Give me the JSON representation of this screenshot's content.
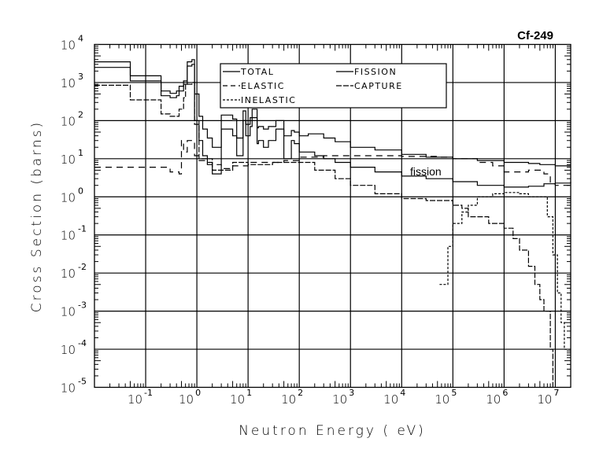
{
  "chart_data": {
    "type": "line",
    "title": "Cf-249",
    "xlabel": "Neutron Energy ( eV)",
    "ylabel": "Cross Section (barns)",
    "xscale": "log",
    "yscale": "log",
    "xlim": [
      0.01,
      20000000
    ],
    "ylim": [
      1e-05,
      10000
    ],
    "grid": true,
    "legend_position": "top-center",
    "x_tick_labels": [
      {
        "base": "10",
        "exp": "-1",
        "value": 0.1
      },
      {
        "base": "10",
        "exp": "0",
        "value": 1
      },
      {
        "base": "10",
        "exp": "1",
        "value": 10
      },
      {
        "base": "10",
        "exp": "2",
        "value": 100
      },
      {
        "base": "10",
        "exp": "3",
        "value": 1000
      },
      {
        "base": "10",
        "exp": "4",
        "value": 10000
      },
      {
        "base": "10",
        "exp": "5",
        "value": 100000
      },
      {
        "base": "10",
        "exp": "6",
        "value": 1000000
      },
      {
        "base": "10",
        "exp": "7",
        "value": 10000000
      }
    ],
    "y_tick_labels": [
      {
        "base": "10",
        "exp": "4",
        "value": 10000
      },
      {
        "base": "10",
        "exp": "3",
        "value": 1000
      },
      {
        "base": "10",
        "exp": "2",
        "value": 100
      },
      {
        "base": "10",
        "exp": "1",
        "value": 10
      },
      {
        "base": "10",
        "exp": "0",
        "value": 1
      },
      {
        "base": "10",
        "exp": "-1",
        "value": 0.1
      },
      {
        "base": "10",
        "exp": "-2",
        "value": 0.01
      },
      {
        "base": "10",
        "exp": "-3",
        "value": 0.001
      },
      {
        "base": "10",
        "exp": "-4",
        "value": 0.0001
      },
      {
        "base": "10",
        "exp": "-5",
        "value": 1e-05
      }
    ],
    "annotations": [
      {
        "text": "fission",
        "x": 30000,
        "y": 5
      }
    ],
    "series": [
      {
        "name": "TOTAL",
        "style": "solid",
        "x": [
          0.01,
          0.05,
          0.2,
          0.3,
          0.35,
          0.4,
          0.45,
          0.55,
          0.6,
          0.65,
          0.8,
          0.9,
          1.1,
          1.3,
          1.6,
          2,
          3,
          3.5,
          5,
          6,
          8,
          9,
          11,
          12,
          15,
          16,
          20,
          25,
          35,
          50,
          70,
          80,
          100,
          150,
          200,
          300,
          500,
          1000,
          3000,
          10000,
          30000,
          100000,
          300000,
          1000000,
          3000000,
          5000000,
          10000000,
          20000000
        ],
        "y": [
          3500,
          1500,
          600,
          520,
          520,
          600,
          800,
          1100,
          1100,
          3500,
          4000,
          500,
          130,
          60,
          35,
          20,
          140,
          140,
          110,
          35,
          180,
          80,
          120,
          200,
          65,
          70,
          60,
          70,
          100,
          40,
          55,
          50,
          40,
          45,
          45,
          35,
          28,
          20,
          17,
          13,
          11,
          10,
          9,
          8,
          7.5,
          7,
          6.5,
          6.5
        ]
      },
      {
        "name": "FISSION",
        "style": "solid",
        "x": [
          0.01,
          0.05,
          0.2,
          0.3,
          0.35,
          0.4,
          0.45,
          0.55,
          0.6,
          0.65,
          0.8,
          0.9,
          1.1,
          1.3,
          1.6,
          2,
          3,
          3.5,
          5,
          6,
          8,
          9,
          11,
          12,
          15,
          16,
          20,
          25,
          35,
          50,
          70,
          80,
          100,
          150,
          200,
          300,
          500,
          1000,
          3000,
          10000,
          30000,
          100000,
          300000,
          1000000,
          3000000,
          6000000,
          10000000,
          20000000
        ],
        "y": [
          2500,
          1100,
          450,
          400,
          400,
          450,
          600,
          900,
          900,
          2700,
          3000,
          100,
          30,
          12,
          7,
          4,
          60,
          60,
          40,
          12,
          100,
          40,
          70,
          120,
          25,
          30,
          20,
          30,
          60,
          10,
          30,
          25,
          15,
          15,
          12,
          10,
          8,
          6,
          4.5,
          3.5,
          3,
          2.5,
          2,
          1.8,
          1.9,
          2.2,
          2.3,
          2.5
        ]
      },
      {
        "name": "ELASTIC",
        "style": "dashed",
        "x": [
          0.01,
          0.1,
          0.3,
          0.45,
          0.5,
          0.55,
          0.65,
          0.9,
          1.1,
          1.5,
          2,
          3,
          5,
          10,
          20,
          50,
          100,
          300,
          1000,
          10000,
          50000,
          100000,
          300000,
          600000,
          1000000,
          2000000,
          3000000,
          6000000,
          8000000,
          10000000,
          20000000
        ],
        "y": [
          6,
          6,
          4.5,
          4,
          30,
          15,
          30,
          12,
          9,
          8,
          7,
          5.5,
          6.5,
          8,
          8,
          9,
          11,
          12,
          12,
          11.5,
          11,
          10,
          8,
          6.5,
          4.5,
          4.5,
          5,
          4,
          2.2,
          2,
          2.5
        ]
      },
      {
        "name": "CAPTURE",
        "style": "dash-dot",
        "x": [
          0.01,
          0.05,
          0.2,
          0.3,
          0.35,
          0.45,
          0.55,
          0.6,
          0.65,
          0.8,
          0.9,
          1.1,
          2,
          5,
          10,
          30,
          100,
          200,
          500,
          1000,
          3000,
          10000,
          30000,
          100000,
          150000,
          200000,
          500000,
          1000000,
          1500000,
          2000000,
          3000000,
          4000000,
          5000000,
          6000000,
          8000000,
          9000000
        ],
        "y": [
          850,
          350,
          150,
          130,
          130,
          200,
          400,
          900,
          900,
          1000,
          80,
          10,
          5,
          8,
          7,
          8,
          8,
          5,
          3,
          2,
          1.2,
          0.9,
          0.8,
          0.6,
          0.5,
          0.3,
          0.2,
          0.15,
          0.08,
          0.04,
          0.015,
          0.005,
          0.002,
          0.001,
          0.0001,
          1e-05
        ]
      },
      {
        "name": "INELASTIC",
        "style": "dotted",
        "x": [
          55000,
          70000,
          80000,
          100000,
          150000,
          200000,
          300000,
          600000,
          1000000,
          2000000,
          3000000,
          5000000,
          6000000,
          7000000,
          8000000,
          9000000,
          11000000,
          13000000,
          15000000,
          18000000,
          20000000
        ],
        "y": [
          0.005,
          0.005,
          0.05,
          0.2,
          0.4,
          0.6,
          1,
          1.2,
          1.3,
          1.2,
          1,
          1,
          1,
          0.3,
          0.3,
          0.03,
          0.003,
          0.0005,
          0.0001,
          0.0001,
          0.0001
        ]
      }
    ]
  }
}
